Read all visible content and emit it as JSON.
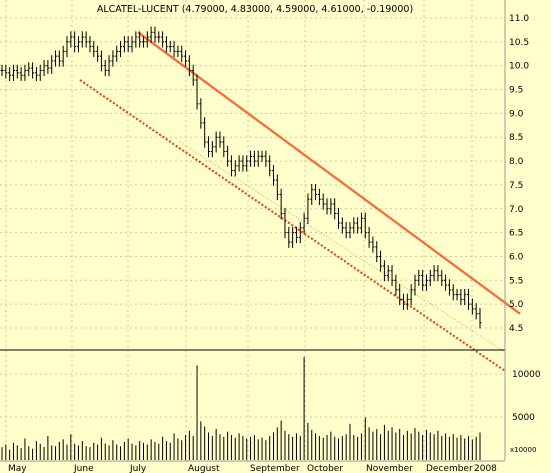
{
  "chart_data": [
    {
      "type": "ohlc",
      "title": "ALCATEL-LUCENT (4.79000, 4.83000, 4.59000, 4.61000, -0.19000)",
      "yaxis_side": "right",
      "ylim": [
        4.1,
        11.2
      ],
      "y_ticks": [
        "11.0",
        "10.5",
        "10.0",
        "9.5",
        "9.0",
        "8.5",
        "8.0",
        "7.5",
        "7.0",
        "6.5",
        "6.0",
        "5.5",
        "5.0",
        "4.5"
      ],
      "x_ticks": [
        "May",
        "June",
        "July",
        "August",
        "September",
        "October",
        "November",
        "December",
        "2008"
      ],
      "closes": [
        9.9,
        9.85,
        9.8,
        9.9,
        9.85,
        9.8,
        9.9,
        9.95,
        9.85,
        9.8,
        9.9,
        10.0,
        9.95,
        10.1,
        10.2,
        10.1,
        10.3,
        10.5,
        10.6,
        10.4,
        10.5,
        10.6,
        10.5,
        10.4,
        10.3,
        10.2,
        10.0,
        9.9,
        10.1,
        10.2,
        10.3,
        10.4,
        10.5,
        10.4,
        10.5,
        10.6,
        10.5,
        10.5,
        10.6,
        10.7,
        10.6,
        10.6,
        10.5,
        10.4,
        10.4,
        10.3,
        10.3,
        10.2,
        10.1,
        9.9,
        9.7,
        9.2,
        8.8,
        8.4,
        8.2,
        8.3,
        8.5,
        8.4,
        8.2,
        8.0,
        7.8,
        7.9,
        8.0,
        7.9,
        8.0,
        8.1,
        8.0,
        8.1,
        8.1,
        8.0,
        7.8,
        7.6,
        7.3,
        6.9,
        6.5,
        6.3,
        6.5,
        6.4,
        6.6,
        6.8,
        7.2,
        7.4,
        7.3,
        7.2,
        7.1,
        7.0,
        7.1,
        6.9,
        6.7,
        6.6,
        6.5,
        6.6,
        6.7,
        6.6,
        6.8,
        6.5,
        6.3,
        6.2,
        6.0,
        5.8,
        5.6,
        5.7,
        5.5,
        5.3,
        5.1,
        5.0,
        5.1,
        5.3,
        5.5,
        5.6,
        5.4,
        5.5,
        5.6,
        5.7,
        5.6,
        5.5,
        5.4,
        5.3,
        5.2,
        5.2,
        5.1,
        5.2,
        5.0,
        4.9,
        4.8,
        4.61
      ],
      "trendlines": [
        {
          "style": "solid",
          "color": "#ff6633",
          "from": [
            "July",
            10.7
          ],
          "to": [
            "2008+",
            4.8
          ]
        },
        {
          "style": "dotted",
          "color": "#ff3300",
          "from": [
            "June",
            9.7
          ],
          "to": [
            "2008+",
            3.6
          ]
        },
        {
          "style": "dotted-thin",
          "color": "#ff9933",
          "from": [
            "August",
            8.4
          ],
          "to": [
            "2008+",
            4.0
          ]
        }
      ]
    },
    {
      "type": "bar",
      "title": "",
      "y_ticks": [
        "10000",
        "5000"
      ],
      "ylim": [
        0,
        16000
      ],
      "scale_label": "x10000",
      "values": [
        1500,
        1800,
        1200,
        2000,
        1700,
        1400,
        2500,
        1600,
        1300,
        2200,
        1900,
        1500,
        2800,
        1700,
        1600,
        2100,
        2400,
        1800,
        3000,
        1900,
        1700,
        2200,
        1600,
        1500,
        2000,
        1800,
        2600,
        1900,
        1700,
        2300,
        1800,
        1600,
        2100,
        2500,
        1900,
        1700,
        2200,
        2000,
        1800,
        2400,
        2100,
        1900,
        2700,
        2200,
        2000,
        3100,
        2500,
        2300,
        2900,
        3400,
        2800,
        11000,
        4500,
        3900,
        3200,
        2800,
        3600,
        3000,
        2700,
        3300,
        2900,
        2600,
        3100,
        2800,
        2500,
        2700,
        2900,
        2400,
        2600,
        2300,
        2800,
        3200,
        3800,
        4600,
        3400,
        3000,
        2700,
        3100,
        2800,
        12000,
        4300,
        3500,
        3100,
        2800,
        2600,
        2900,
        3300,
        2700,
        2500,
        2800,
        3000,
        4200,
        2900,
        2700,
        3100,
        5000,
        3800,
        3300,
        3600,
        3000,
        4100,
        3400,
        3800,
        3200,
        3600,
        2900,
        3400,
        3100,
        3700,
        3300,
        2900,
        3500,
        3200,
        3000,
        3400,
        2800,
        3100,
        2700,
        3000,
        2600,
        2900,
        2500,
        2800,
        2400,
        2700,
        3200
      ]
    }
  ]
}
